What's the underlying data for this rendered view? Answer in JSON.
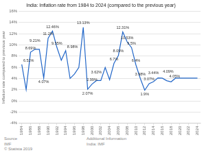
{
  "chart_data": {
    "type": "line",
    "title": "India: Inflation rate from 1984 to 2024 (compared to the previous year)",
    "x": [
      1984,
      1985,
      1986,
      1987,
      1988,
      1989,
      1990,
      1991,
      1992,
      1993,
      1994,
      1995,
      1996,
      1997,
      1998,
      1999,
      2000,
      2001,
      2002,
      2003,
      2004,
      2005,
      2006,
      2007,
      2008,
      2009,
      2010,
      2011,
      2012,
      2013,
      2014,
      2015,
      2016,
      2017,
      2018,
      2019,
      2020,
      2021,
      2022,
      2023,
      2024
    ],
    "values": [
      6.52,
      2.0,
      8.69,
      9.21,
      9.21,
      4.07,
      11.2,
      12.46,
      9.55,
      7.25,
      8.98,
      4.0,
      4.8,
      5.97,
      13.13,
      2.07,
      2.99,
      3.62,
      3.62,
      5.97,
      3.77,
      6.7,
      8.09,
      12.31,
      10.53,
      9.5,
      6.4,
      3.98,
      1.9,
      3.07,
      3.44,
      4.09,
      4.05,
      3.6,
      3.4,
      4.05,
      4.05,
      4.05,
      4.05,
      4.05,
      4.05
    ],
    "color": "#2166c8",
    "xlim": [
      1983.3,
      2024.7
    ],
    "xticks": [
      1984,
      1986,
      1988,
      1990,
      1992,
      1994,
      1996,
      1998,
      2000,
      2002,
      2004,
      2006,
      2008,
      2010,
      2012,
      2014,
      2016,
      2018,
      2020,
      2022,
      2024
    ],
    "ylabel": "Inflation rate compared to previous year",
    "ylim": [
      -4,
      16
    ],
    "yticks": [
      {
        "value": -4,
        "label": "-4%"
      },
      {
        "value": -2,
        "label": "-2%"
      },
      {
        "value": 0,
        "label": "0%"
      },
      {
        "value": 2,
        "label": "2%"
      },
      {
        "value": 4,
        "label": "4%"
      },
      {
        "value": 6,
        "label": "6%"
      },
      {
        "value": 8,
        "label": "8%"
      },
      {
        "value": 10,
        "label": "10%"
      },
      {
        "value": 12,
        "label": "12%"
      },
      {
        "value": 14,
        "label": "14%"
      },
      {
        "value": 16,
        "label": "16%"
      }
    ],
    "grid": true,
    "annotations": [
      {
        "x": 1984,
        "y": 6.52,
        "label": "6.52%"
      },
      {
        "x": 1986,
        "y": 8.69,
        "label": "8.69%"
      },
      {
        "x": 1987,
        "y": 9.21,
        "label": "9.21%"
      },
      {
        "x": 1989,
        "y": 4.07,
        "label": "4.07%"
      },
      {
        "x": 1990,
        "y": 11.2,
        "label": "11.2%"
      },
      {
        "x": 1991,
        "y": 12.46,
        "label": "12.46%"
      },
      {
        "x": 1992,
        "y": 9.55,
        "label": "9.55%"
      },
      {
        "x": 1994,
        "y": 8.98,
        "label": "8.98%"
      },
      {
        "x": 1998,
        "y": 13.13,
        "label": "13.13%"
      },
      {
        "x": 1999,
        "y": 2.07,
        "label": "2.07%"
      },
      {
        "x": 2000,
        "y": 2.99,
        "label": "2.99%"
      },
      {
        "x": 2001,
        "y": 3.62,
        "label": "3.62%"
      },
      {
        "x": 2005,
        "y": 6.7,
        "label": "6.7%"
      },
      {
        "x": 2006,
        "y": 8.09,
        "label": "8.09%"
      },
      {
        "x": 2007,
        "y": 12.31,
        "label": "12.31%"
      },
      {
        "x": 2008,
        "y": 10.53,
        "label": "10.53%"
      },
      {
        "x": 2009,
        "y": 9.5,
        "label": "9.5%"
      },
      {
        "x": 2010,
        "y": 6.4,
        "label": "6.4%"
      },
      {
        "x": 2011,
        "y": 3.98,
        "label": "3.98%"
      },
      {
        "x": 2012,
        "y": 1.9,
        "label": "1.9%"
      },
      {
        "x": 2013,
        "y": 3.07,
        "label": "3.07%"
      },
      {
        "x": 2014,
        "y": 3.44,
        "label": "3.44%"
      },
      {
        "x": 2015,
        "y": 4.09,
        "label": "4.09%"
      },
      {
        "x": 2016,
        "y": 4.05,
        "label": "4.05%"
      }
    ],
    "source": "Source\nIMF\n© Statista 2019",
    "additional_text": "Additional Information\nIndia: IMF"
  }
}
